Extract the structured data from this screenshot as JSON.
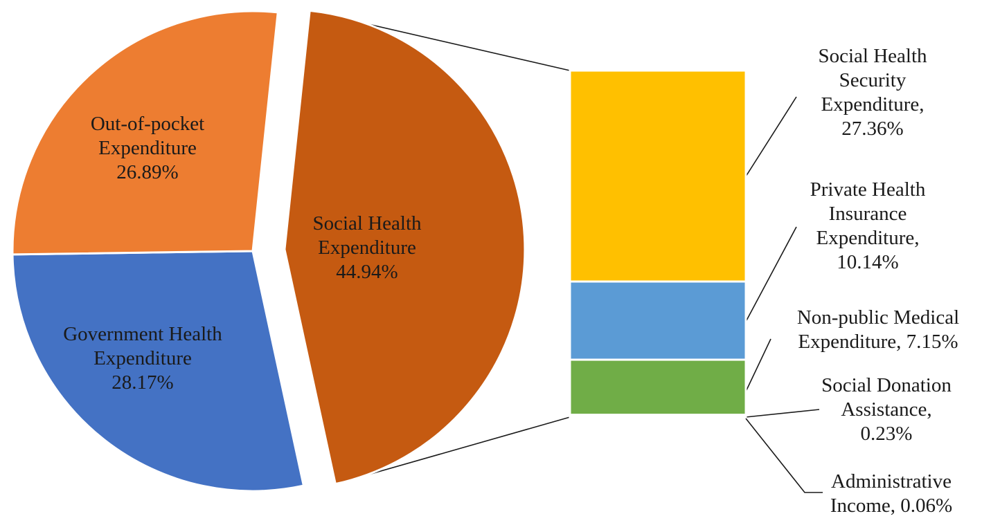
{
  "chart_data": {
    "type": "bar-of-pie",
    "pie": {
      "slices": [
        {
          "key": "social",
          "label_lines": [
            "Social Health",
            "Expenditure",
            "44.94%"
          ],
          "value": 44.94,
          "color": "#C55A11",
          "exploded": true
        },
        {
          "key": "government",
          "label_lines": [
            "Government Health",
            "Expenditure",
            "28.17%"
          ],
          "value": 28.17,
          "color": "#4472C4",
          "exploded": false
        },
        {
          "key": "oop",
          "label_lines": [
            "Out-of-pocket",
            "Expenditure",
            "26.89%"
          ],
          "value": 26.89,
          "color": "#ED7D31",
          "exploded": false
        }
      ]
    },
    "bar": {
      "segments": [
        {
          "key": "shs",
          "label_lines": [
            "Social Health",
            "Security",
            "Expenditure,",
            "27.36%"
          ],
          "value": 27.36,
          "color": "#FFC000"
        },
        {
          "key": "phi",
          "label_lines": [
            "Private Health",
            "Insurance",
            "Expenditure,",
            "10.14%"
          ],
          "value": 10.14,
          "color": "#5B9BD5"
        },
        {
          "key": "npm",
          "label_lines": [
            "Non-public Medical",
            "Expenditure, 7.15%"
          ],
          "value": 7.15,
          "color": "#70AD47"
        },
        {
          "key": "sda",
          "label_lines": [
            "Social Donation",
            "Assistance,",
            "0.23%"
          ],
          "value": 0.23,
          "color": "#A5A5A5"
        },
        {
          "key": "adm",
          "label_lines": [
            "Administrative",
            "Income, 0.06%"
          ],
          "value": 0.06,
          "color": "#264478"
        }
      ]
    }
  }
}
